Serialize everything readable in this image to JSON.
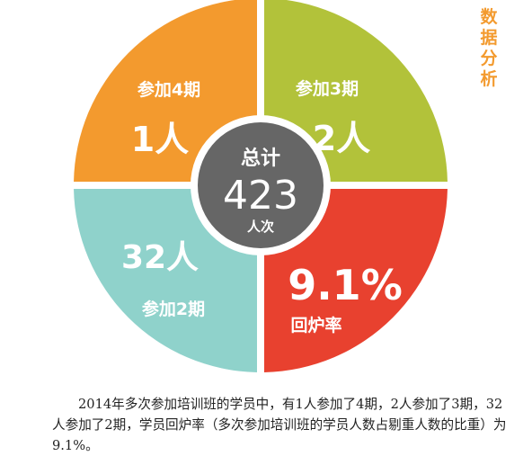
{
  "side_title": "数据分析",
  "chart_data": {
    "type": "pie",
    "quadrants": [
      {
        "label": "参加4期",
        "value": "1人",
        "color": "#f39a2e"
      },
      {
        "label": "参加3期",
        "value": "2人",
        "color": "#b2c23a"
      },
      {
        "label": "参加2期",
        "value": "32人",
        "color": "#8fd2cb"
      },
      {
        "label": "回炉率",
        "value": "9.1%",
        "color": "#e8412f"
      }
    ],
    "center": {
      "title": "总计",
      "number": "423",
      "unit": "人次",
      "color": "#666666"
    }
  },
  "caption": "2014年多次参加培训班的学员中，有1人参加了4期，2人参加了3期，32人参加了2期，学员回炉率（多次参加培训班的学员人数占剔重人数的比重）为9.1%。"
}
